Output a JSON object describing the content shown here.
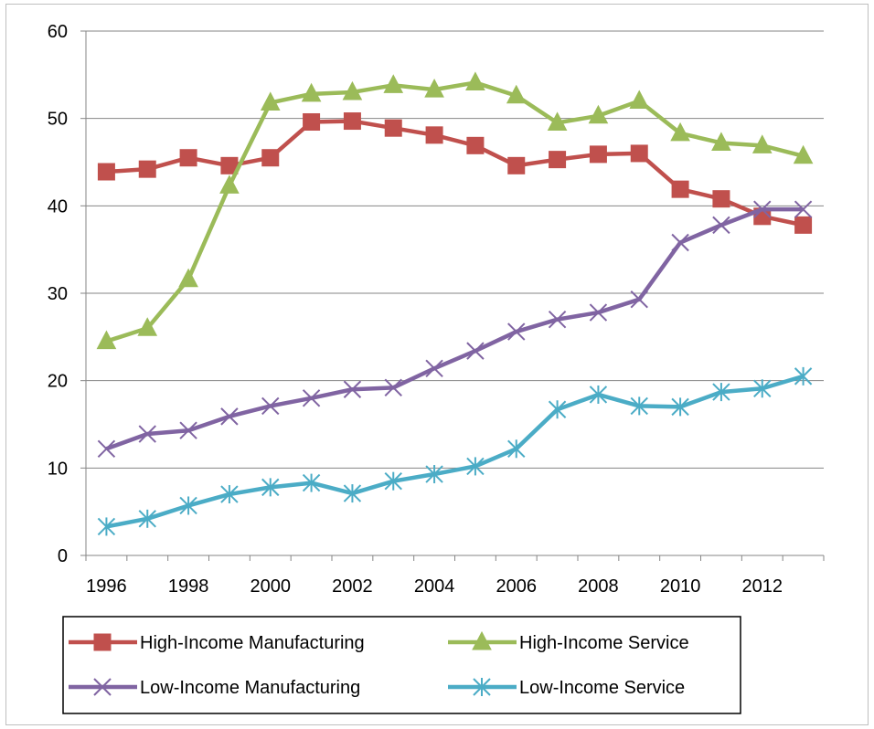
{
  "chart_data": {
    "type": "line",
    "title": "",
    "xlabel": "",
    "ylabel": "",
    "x": [
      1996,
      1997,
      1998,
      1999,
      2000,
      2001,
      2002,
      2003,
      2004,
      2005,
      2006,
      2007,
      2008,
      2009,
      2010,
      2011,
      2012,
      2013
    ],
    "x_tick_labels": [
      "1996",
      "1998",
      "2000",
      "2002",
      "2004",
      "2006",
      "2008",
      "2010",
      "2012"
    ],
    "y_tick_labels": [
      "0",
      "10",
      "20",
      "30",
      "40",
      "50",
      "60"
    ],
    "ylim": [
      0,
      60
    ],
    "grid": "horizontal",
    "legend_position": "bottom",
    "series": [
      {
        "name": "High-Income Manufacturing",
        "color": "#c0504d",
        "marker": "square",
        "values": [
          43.9,
          44.2,
          45.5,
          44.6,
          45.5,
          49.6,
          49.7,
          48.9,
          48.1,
          46.9,
          44.6,
          45.3,
          45.9,
          46.0,
          41.9,
          40.8,
          38.8,
          37.8
        ]
      },
      {
        "name": "High-Income Service",
        "color": "#9bbb59",
        "marker": "triangle",
        "values": [
          24.5,
          26.0,
          31.6,
          42.3,
          51.8,
          52.8,
          53.0,
          53.8,
          53.3,
          54.1,
          52.6,
          49.5,
          50.3,
          52.0,
          48.3,
          47.2,
          46.9,
          45.7
        ]
      },
      {
        "name": "Low-Income Manufacturing",
        "color": "#8064a2",
        "marker": "x",
        "values": [
          12.2,
          13.9,
          14.3,
          15.9,
          17.1,
          18.0,
          19.0,
          19.2,
          21.4,
          23.4,
          25.6,
          27.0,
          27.8,
          29.3,
          35.8,
          37.8,
          39.6,
          39.6
        ]
      },
      {
        "name": "Low-Income Service",
        "color": "#4bacc6",
        "marker": "star",
        "values": [
          3.3,
          4.2,
          5.7,
          7.0,
          7.8,
          8.3,
          7.1,
          8.5,
          9.3,
          10.2,
          12.2,
          16.7,
          18.4,
          17.1,
          17.0,
          18.7,
          19.1,
          20.5
        ]
      }
    ]
  }
}
